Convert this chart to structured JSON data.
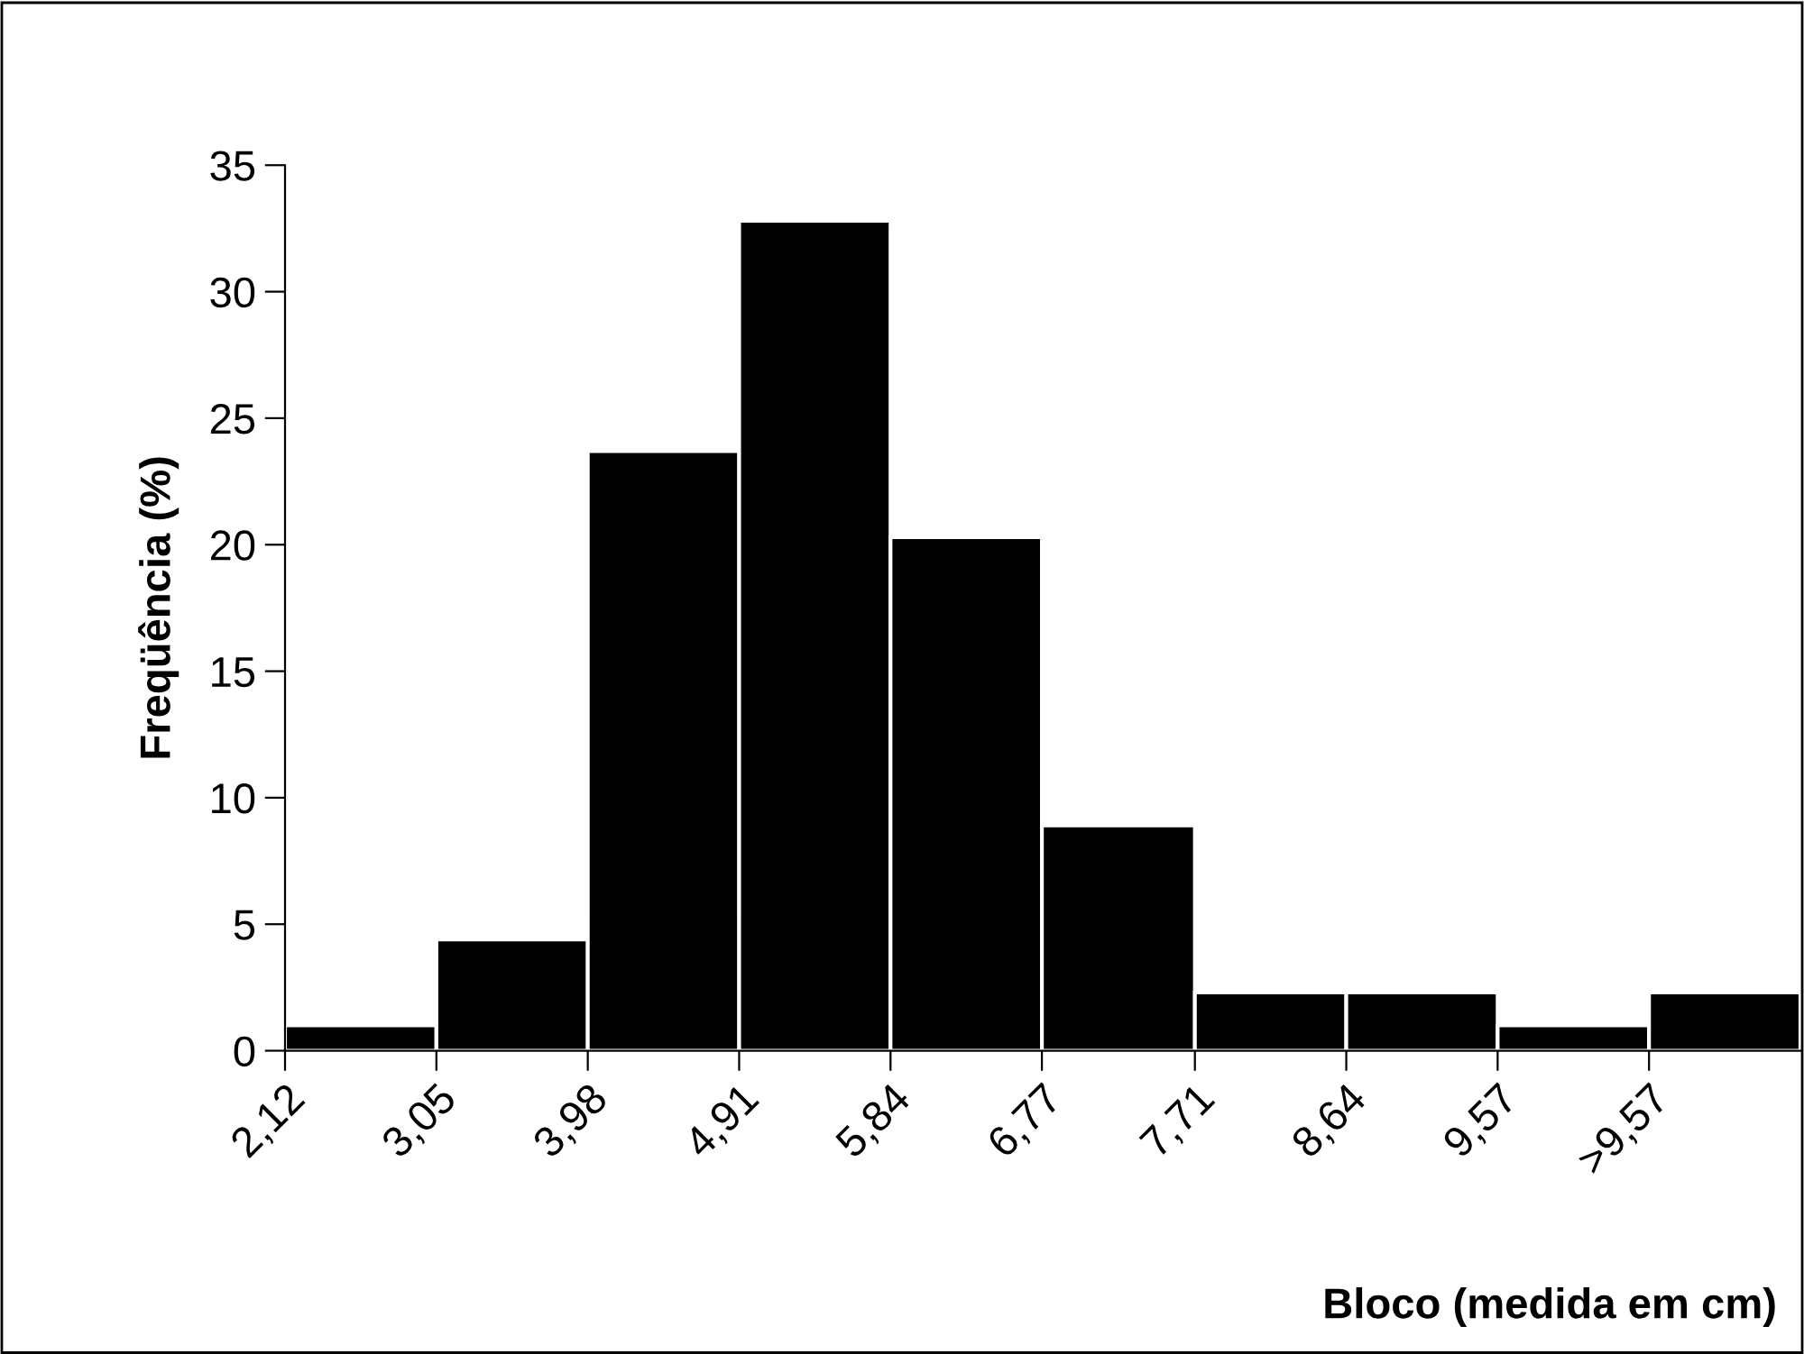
{
  "chart_data": {
    "type": "histogram",
    "xlabel": "Bloco (medida em cm)",
    "ylabel": "Freqüência (%)",
    "bins": [
      2.12,
      3.05,
      3.98,
      4.91,
      5.84,
      6.77,
      7.71,
      8.64,
      9.57,
      10.5,
      11.43
    ],
    "values": [
      1.0,
      4.4,
      23.7,
      32.8,
      20.3,
      8.9,
      2.3,
      2.3,
      1.0,
      2.3
    ],
    "color": "#000000",
    "xlim": [
      2.12,
      11.43
    ],
    "xticks": [
      {
        "value": 2.12,
        "label": "2,12"
      },
      {
        "value": 3.05,
        "label": "3,05"
      },
      {
        "value": 3.98,
        "label": "3,98"
      },
      {
        "value": 4.91,
        "label": "4,91"
      },
      {
        "value": 5.84,
        "label": "5,84"
      },
      {
        "value": 6.77,
        "label": "6,77"
      },
      {
        "value": 7.71,
        "label": "7,71"
      },
      {
        "value": 8.64,
        "label": "8,64"
      },
      {
        "value": 9.57,
        "label": "9,57"
      },
      {
        "value": 10.5,
        "label": ">9,57"
      }
    ],
    "ylim": [
      0,
      35
    ],
    "yticks": [
      0,
      5,
      10,
      15,
      20,
      25,
      30,
      35
    ],
    "grid": false,
    "legend": false
  }
}
